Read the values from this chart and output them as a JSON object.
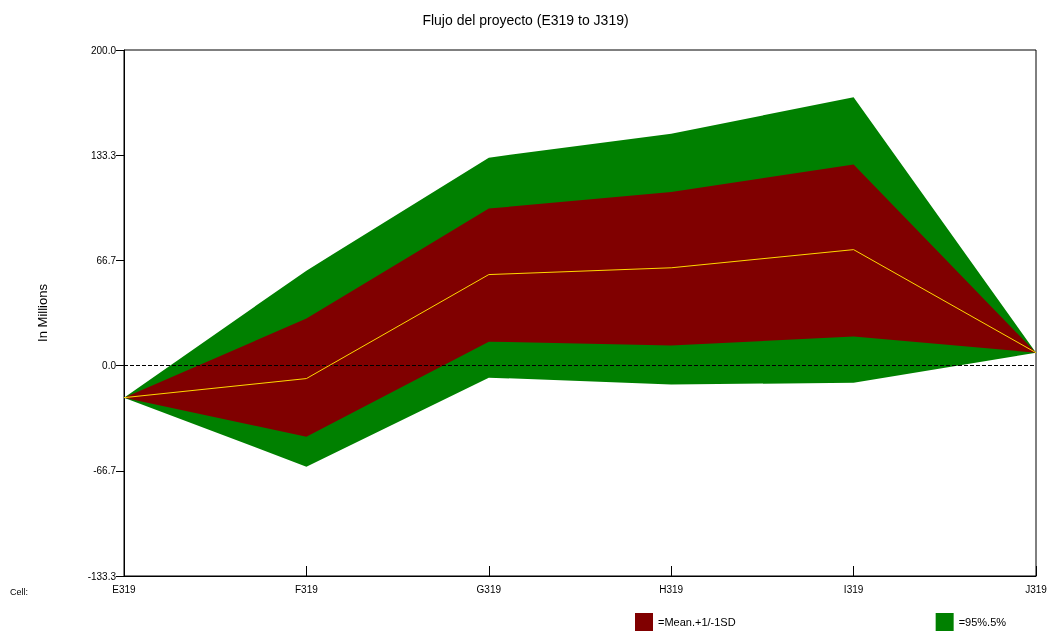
{
  "chart_data": {
    "type": "area",
    "title": "Flujo del proyecto (E319 to J319)",
    "ylabel": "In Millions",
    "categories": [
      "E319",
      "F319",
      "G319",
      "H319",
      "I319",
      "J319"
    ],
    "series": [
      {
        "name": "=Mean.+1/-1SD",
        "type": "area",
        "color": "#800000",
        "values": [
          null,
          null,
          null,
          null,
          null,
          null
        ],
        "lower": [
          -20.3,
          -45,
          15.2,
          12.7,
          18.4,
          8.2
        ],
        "upper": [
          -20.3,
          29.8,
          99.5,
          110,
          127.4,
          8.2
        ]
      },
      {
        "name": "=95%.5%",
        "type": "area",
        "color": "#008000",
        "values": [
          null,
          null,
          null,
          null,
          null,
          null
        ],
        "lower": [
          -20.3,
          -64,
          -7.6,
          -12,
          -10.8,
          8.2
        ],
        "upper": [
          -20.3,
          60.2,
          131.8,
          147,
          170,
          8.2
        ]
      },
      {
        "type": "line",
        "color": "#ffd700",
        "values": [
          -20.3,
          -8.2,
          57.7,
          62,
          73.5,
          8.2
        ]
      }
    ],
    "ylim": [
      -133.3,
      200
    ],
    "yticks": [
      {
        "value": -133.3,
        "label": "-133.3"
      },
      {
        "value": -66.7,
        "label": "-66.7"
      },
      {
        "value": 0,
        "label": "0.0"
      },
      {
        "value": 66.7,
        "label": "66.7"
      },
      {
        "value": 133.3,
        "label": "133.3"
      },
      {
        "value": 200,
        "label": "200.0"
      }
    ],
    "ref_lines": [
      {
        "axis": "y",
        "value": 0,
        "color": "#000000",
        "line_style": "dashed"
      }
    ],
    "annotations": [
      "Cell:"
    ],
    "grid": false,
    "legend": "bottom",
    "marker": "none"
  }
}
